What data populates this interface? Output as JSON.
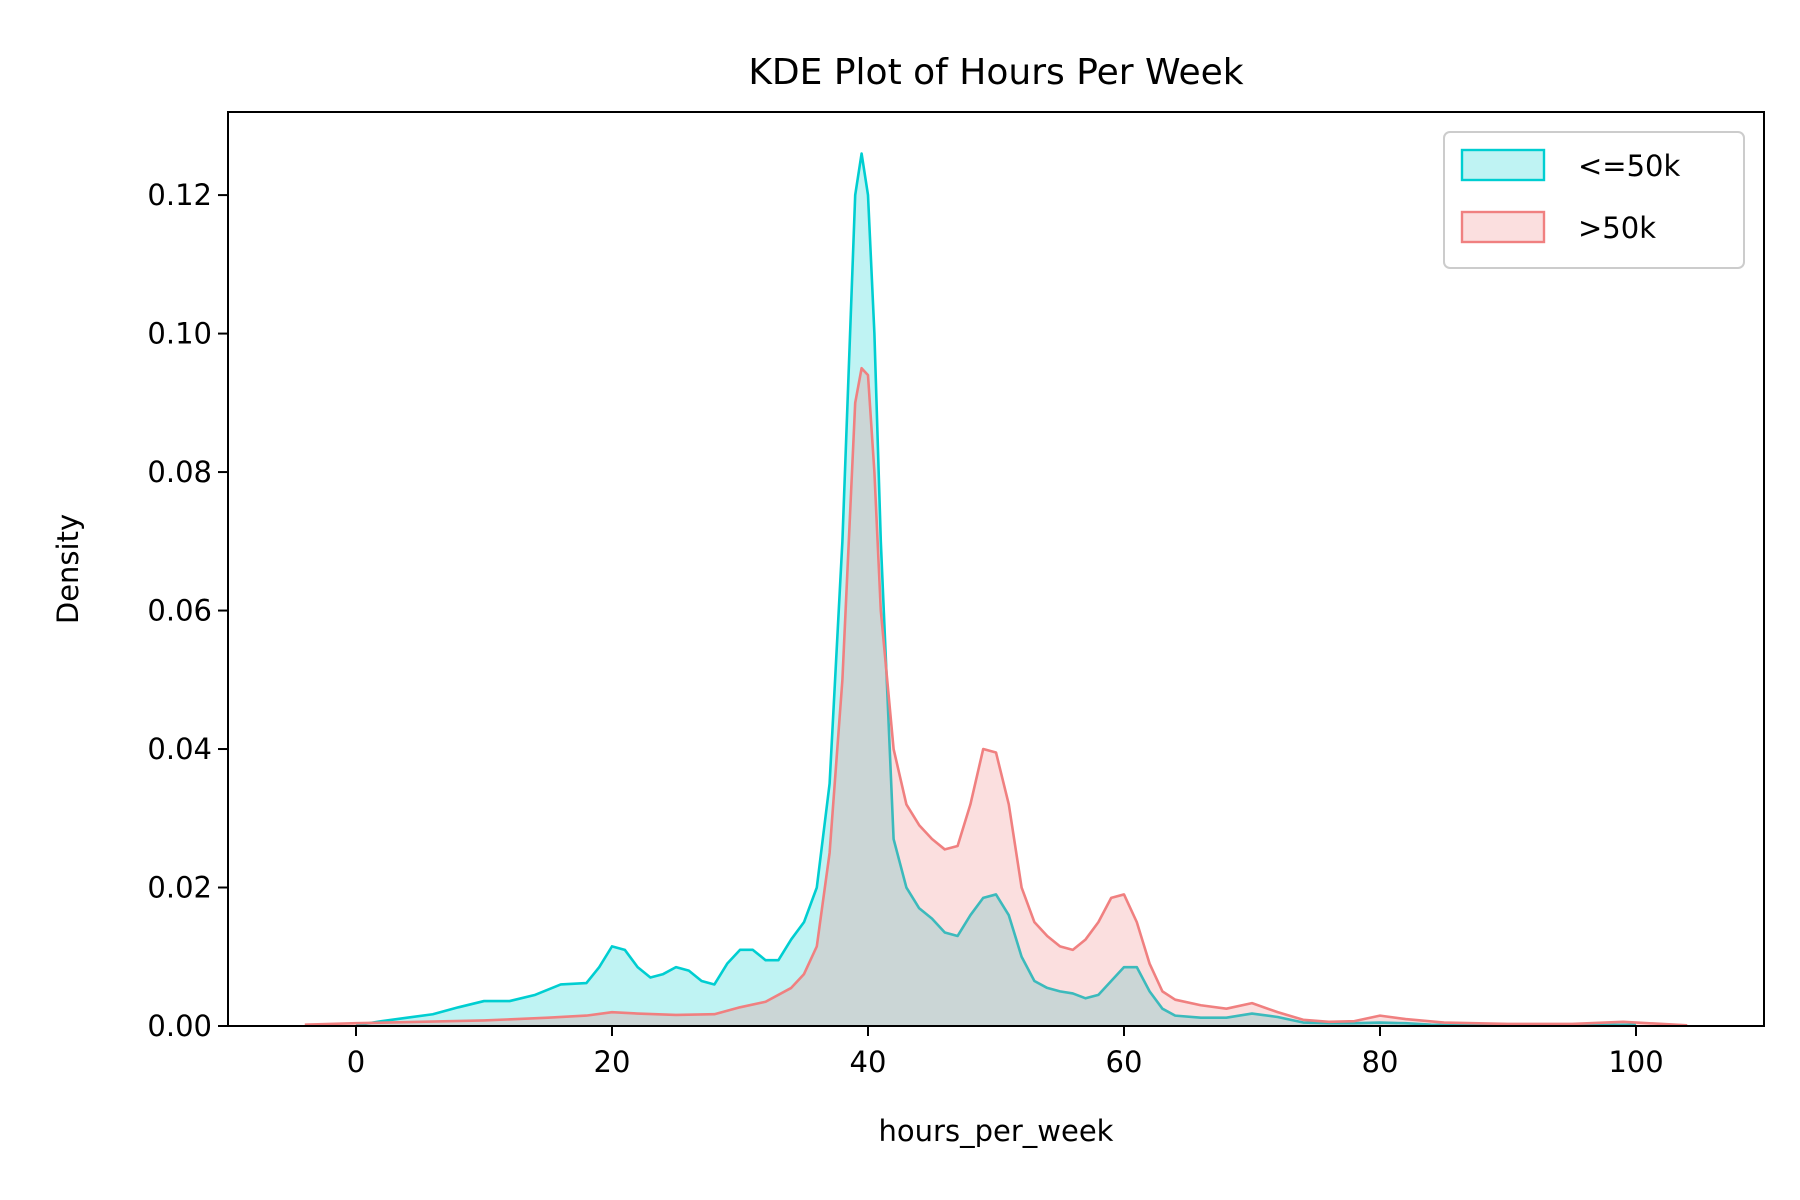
{
  "chart_data": {
    "type": "area",
    "title": "KDE Plot of Hours Per Week",
    "xlabel": "hours_per_week",
    "ylabel": "Density",
    "xlim": [
      -10,
      110
    ],
    "ylim": [
      0,
      0.132
    ],
    "xticks": [
      0,
      20,
      40,
      60,
      80,
      100
    ],
    "xtick_labels": [
      "0",
      "20",
      "40",
      "60",
      "80",
      "100"
    ],
    "yticks": [
      0,
      0.02,
      0.04,
      0.06,
      0.08,
      0.1,
      0.12
    ],
    "ytick_labels": [
      "0.00",
      "0.02",
      "0.04",
      "0.06",
      "0.08",
      "0.10",
      "0.12"
    ],
    "grid": false,
    "legend_position": "top-right",
    "series": [
      {
        "name": "<=50k",
        "color": "#00CED1",
        "x": [
          0,
          2,
          4,
          6,
          8,
          10,
          12,
          14,
          16,
          18,
          19,
          20,
          21,
          22,
          23,
          24,
          25,
          26,
          27,
          28,
          29,
          30,
          31,
          32,
          33,
          34,
          35,
          36,
          37,
          38,
          39,
          39.5,
          40,
          40.5,
          41,
          42,
          43,
          44,
          45,
          46,
          47,
          48,
          49,
          50,
          51,
          52,
          53,
          54,
          55,
          56,
          57,
          58,
          59,
          60,
          61,
          62,
          63,
          64,
          66,
          68,
          70,
          72,
          74,
          76,
          78,
          80,
          82,
          84,
          86,
          90,
          95,
          100
        ],
        "y": [
          0.0001,
          0.0007,
          0.0012,
          0.0017,
          0.0027,
          0.0036,
          0.0036,
          0.0045,
          0.006,
          0.0062,
          0.0085,
          0.0115,
          0.011,
          0.0085,
          0.007,
          0.0075,
          0.0085,
          0.008,
          0.0065,
          0.006,
          0.009,
          0.011,
          0.011,
          0.0095,
          0.0095,
          0.0125,
          0.015,
          0.02,
          0.035,
          0.07,
          0.12,
          0.126,
          0.12,
          0.1,
          0.07,
          0.027,
          0.02,
          0.017,
          0.0155,
          0.0135,
          0.013,
          0.016,
          0.0185,
          0.019,
          0.016,
          0.01,
          0.0065,
          0.0055,
          0.005,
          0.0047,
          0.004,
          0.0045,
          0.0065,
          0.0085,
          0.0085,
          0.005,
          0.0025,
          0.0015,
          0.0012,
          0.0012,
          0.0018,
          0.0013,
          0.0005,
          0.0004,
          0.0004,
          0.0005,
          0.0004,
          0.0002,
          0.0001,
          0.0001,
          0.0001,
          0.0002
        ]
      },
      {
        "name": ">50k",
        "color": "#F08080",
        "x": [
          -4,
          0,
          5,
          10,
          15,
          18,
          20,
          22,
          25,
          28,
          30,
          32,
          34,
          35,
          36,
          37,
          38,
          39,
          39.5,
          40,
          40.5,
          41,
          42,
          43,
          44,
          45,
          46,
          47,
          48,
          49,
          50,
          51,
          52,
          53,
          54,
          55,
          56,
          57,
          58,
          59,
          60,
          61,
          62,
          63,
          64,
          66,
          68,
          70,
          72,
          74,
          76,
          78,
          80,
          82,
          85,
          90,
          95,
          99,
          104
        ],
        "y": [
          0.0002,
          0.0004,
          0.0006,
          0.0008,
          0.0012,
          0.0015,
          0.002,
          0.0018,
          0.0016,
          0.0017,
          0.0027,
          0.0035,
          0.0055,
          0.0075,
          0.0115,
          0.025,
          0.05,
          0.09,
          0.095,
          0.094,
          0.08,
          0.06,
          0.04,
          0.032,
          0.029,
          0.027,
          0.0255,
          0.026,
          0.032,
          0.04,
          0.0395,
          0.032,
          0.02,
          0.015,
          0.013,
          0.0115,
          0.011,
          0.0125,
          0.015,
          0.0185,
          0.019,
          0.015,
          0.009,
          0.005,
          0.0038,
          0.003,
          0.0025,
          0.0033,
          0.002,
          0.0009,
          0.0006,
          0.0007,
          0.0015,
          0.001,
          0.0005,
          0.0003,
          0.0003,
          0.0006,
          0.0001
        ]
      }
    ]
  }
}
